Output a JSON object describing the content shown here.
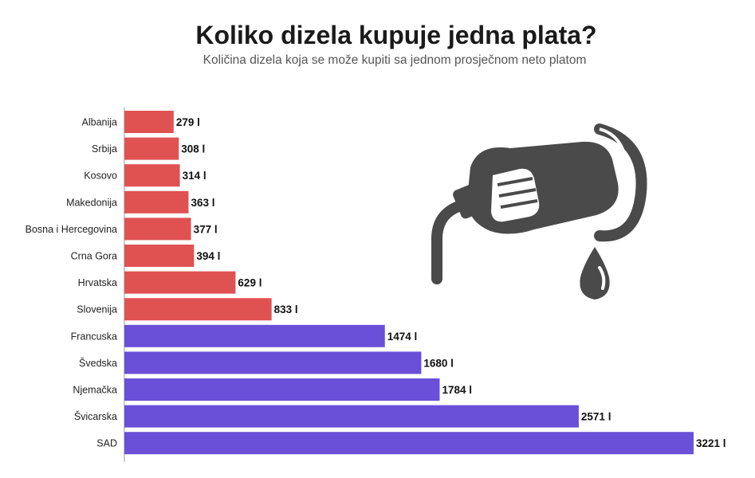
{
  "header": {
    "title": "Koliko dizela kupuje jedna plata?",
    "subtitle": "Količina dizela koja se može kupiti sa jednom prosječnom neto platom"
  },
  "colors": {
    "balkan": "#e05252",
    "other": "#6a4fd8",
    "axis": "#999999",
    "icon": "#4a4a4a"
  },
  "icon": {
    "name": "fuel-nozzle-icon"
  },
  "chart_data": {
    "type": "bar",
    "orientation": "horizontal",
    "title": "Koliko dizela kupuje jedna plata?",
    "subtitle": "Količina dizela koja se može kupiti sa jednom prosječnom neto platom",
    "xlabel": "",
    "ylabel": "",
    "categories": [
      "Albanija",
      "Srbija",
      "Kosovo",
      "Makedonija",
      "Bosna i Hercegovina",
      "Crna Gora",
      "Hrvatska",
      "Slovenija",
      "Francuska",
      "Švedska",
      "Njemačka",
      "Švicarska",
      "SAD"
    ],
    "values": [
      279,
      308,
      314,
      363,
      377,
      394,
      629,
      833,
      1474,
      1680,
      1784,
      2571,
      3221
    ],
    "value_labels": [
      "279 l",
      "308 l",
      "314 l",
      "363 l",
      "377 l",
      "394 l",
      "629 l",
      "833 l",
      "1474 l",
      "1680 l",
      "1784 l",
      "2571 l",
      "3221 l"
    ],
    "bar_colors": [
      "#e05252",
      "#e05252",
      "#e05252",
      "#e05252",
      "#e05252",
      "#e05252",
      "#e05252",
      "#e05252",
      "#6a4fd8",
      "#6a4fd8",
      "#6a4fd8",
      "#6a4fd8",
      "#6a4fd8"
    ],
    "xlim": [
      0,
      3221
    ],
    "grid": false,
    "legend": "none"
  }
}
